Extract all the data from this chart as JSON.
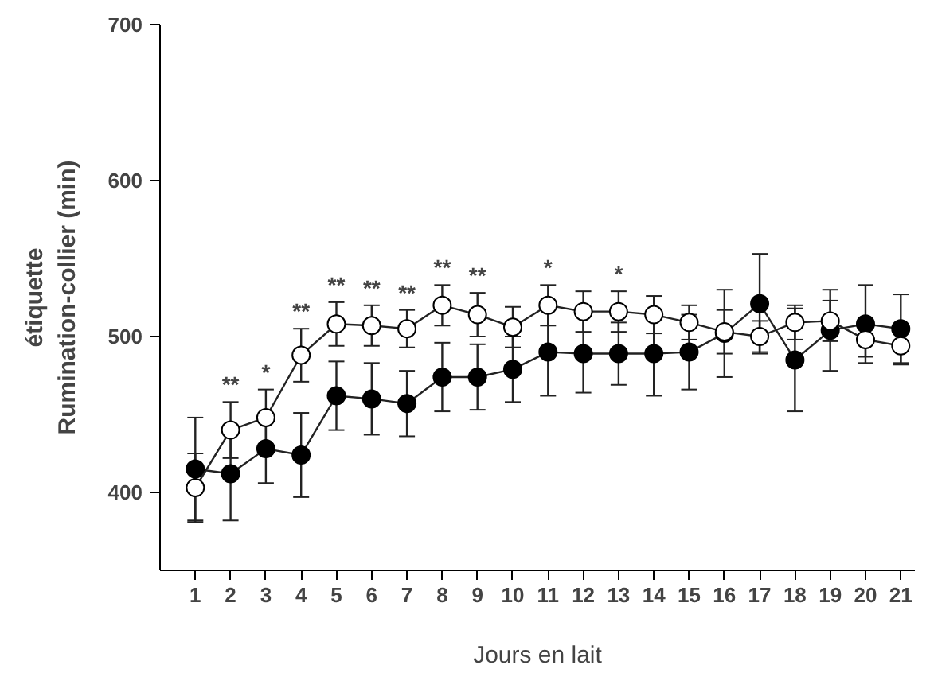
{
  "chart_data": {
    "type": "line",
    "xlabel": "Jours en lait",
    "ylabel": "étiquette\nRumination-collier (min)",
    "x": [
      1,
      2,
      3,
      4,
      5,
      6,
      7,
      8,
      9,
      10,
      11,
      12,
      13,
      14,
      15,
      16,
      17,
      18,
      19,
      20,
      21
    ],
    "series": [
      {
        "color": "#000000",
        "values": [
          415,
          412,
          428,
          424,
          462,
          460,
          457,
          474,
          474,
          479,
          490,
          489,
          489,
          489,
          490,
          502,
          521,
          485,
          504,
          508,
          505
        ],
        "errors": [
          33,
          30,
          22,
          27,
          22,
          23,
          21,
          22,
          21,
          21,
          28,
          25,
          20,
          27,
          24,
          28,
          32,
          33,
          26,
          25,
          22
        ]
      },
      {
        "color": "#ffffff",
        "values": [
          403,
          440,
          448,
          488,
          508,
          507,
          505,
          520,
          514,
          506,
          520,
          516,
          516,
          514,
          509,
          503,
          500,
          509,
          510,
          498,
          494
        ],
        "errors": [
          22,
          18,
          18,
          17,
          14,
          13,
          12,
          13,
          14,
          13,
          13,
          13,
          13,
          12,
          11,
          14,
          10,
          11,
          13,
          11,
          12
        ]
      }
    ],
    "xlim": [
      0,
      21.4
    ],
    "ylim": [
      350,
      700
    ],
    "xticks": [
      1,
      2,
      3,
      4,
      5,
      6,
      7,
      8,
      9,
      10,
      11,
      12,
      13,
      14,
      15,
      16,
      17,
      18,
      19,
      20,
      21
    ],
    "yticks": [
      400,
      500,
      600,
      700
    ],
    "marker": "circle",
    "line_style": "solid",
    "grid": false,
    "annotations": [
      {
        "text": "**",
        "x": 2,
        "y": 461
      },
      {
        "text": "*",
        "x": 3,
        "y": 469
      },
      {
        "text": "**",
        "x": 4,
        "y": 508
      },
      {
        "text": "**",
        "x": 5,
        "y": 525
      },
      {
        "text": "**",
        "x": 6,
        "y": 523
      },
      {
        "text": "**",
        "x": 7,
        "y": 520
      },
      {
        "text": "**",
        "x": 8,
        "y": 536
      },
      {
        "text": "**",
        "x": 9,
        "y": 531
      },
      {
        "text": "*",
        "x": 11,
        "y": 536
      },
      {
        "text": "*",
        "x": 13,
        "y": 532
      }
    ]
  }
}
